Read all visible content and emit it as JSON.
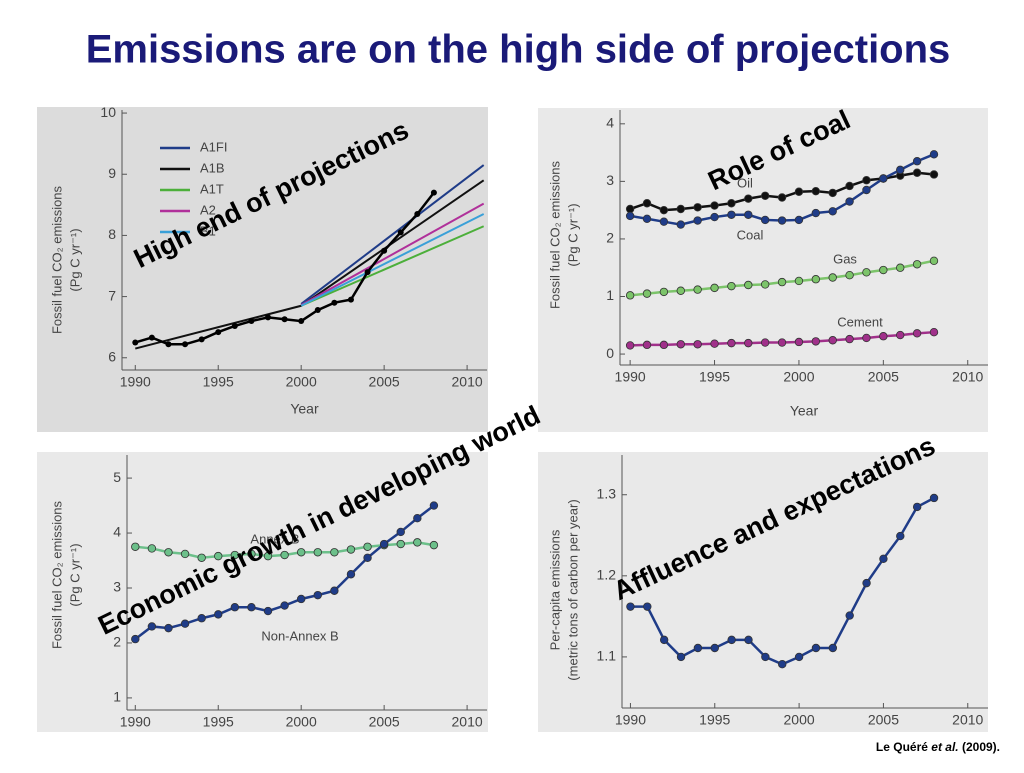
{
  "title": "Emissions are on the high side of projections",
  "annotations": [
    "High end of projections",
    "Role of coal",
    "Economic growth in developing world",
    "Affluence and expectations"
  ],
  "citation": {
    "author": "Le Quéré",
    "etal": "et al.",
    "year": "(2009)."
  },
  "chart_data": [
    {
      "type": "line",
      "xlabel": "Year",
      "ylabel": [
        "Fossil fuel CO₂ emissions",
        "(Pg C yr⁻¹)"
      ],
      "xlim": [
        1989.2,
        2011.2
      ],
      "ylim": [
        5.8,
        10.05
      ],
      "xticks": [
        1990,
        1995,
        2000,
        2005,
        2010
      ],
      "yticks": [
        6,
        7,
        8,
        9,
        10
      ],
      "legend": "upper left",
      "series": [
        {
          "name": "A1FI",
          "color": "#1f3c88",
          "x": [
            2000,
            2011
          ],
          "values": [
            6.88,
            9.15
          ]
        },
        {
          "name": "A1B",
          "color": "#111111",
          "x": [
            1990,
            2000,
            2011
          ],
          "values": [
            6.15,
            6.85,
            8.9
          ]
        },
        {
          "name": "A1T",
          "color": "#4caf3a",
          "x": [
            2000,
            2011
          ],
          "values": [
            6.85,
            8.15
          ]
        },
        {
          "name": "A2",
          "color": "#b0309a",
          "x": [
            2000,
            2011
          ],
          "values": [
            6.86,
            8.52
          ]
        },
        {
          "name": "B1",
          "color": "#3aa0d8",
          "x": [
            2000,
            2011
          ],
          "values": [
            6.85,
            8.35
          ]
        },
        {
          "color": "#000000",
          "marker": true,
          "x": [
            1990,
            1991,
            1992,
            1993,
            1994,
            1995,
            1996,
            1997,
            1998,
            1999,
            2000,
            2001,
            2002,
            2003,
            2004,
            2005,
            2006,
            2007,
            2008
          ],
          "values": [
            6.25,
            6.33,
            6.22,
            6.22,
            6.3,
            6.42,
            6.52,
            6.6,
            6.66,
            6.63,
            6.6,
            6.78,
            6.9,
            6.95,
            7.4,
            7.75,
            8.05,
            8.35,
            8.7
          ]
        }
      ]
    },
    {
      "type": "line",
      "xlabel": "Year",
      "ylabel": [
        "Fossil fuel CO₂ emissions",
        "(Pg C yr⁻¹)"
      ],
      "xlim": [
        1989.4,
        2011.2
      ],
      "ylim": [
        -0.19,
        4.24
      ],
      "xticks": [
        1990,
        1995,
        2000,
        2005,
        2010
      ],
      "yticks": [
        0,
        1,
        2,
        3,
        4
      ],
      "legend": "inline",
      "x": [
        1990,
        1991,
        1992,
        1993,
        1994,
        1995,
        1996,
        1997,
        1998,
        1999,
        2000,
        2001,
        2002,
        2003,
        2004,
        2005,
        2006,
        2007,
        2008
      ],
      "series": [
        {
          "name": "Oil",
          "color": "#111111",
          "marker": true,
          "values": [
            2.52,
            2.62,
            2.5,
            2.52,
            2.55,
            2.58,
            2.62,
            2.7,
            2.75,
            2.72,
            2.82,
            2.83,
            2.8,
            2.92,
            3.02,
            3.05,
            3.1,
            3.15,
            3.12
          ]
        },
        {
          "name": "Coal",
          "color": "#1f3c88",
          "marker": true,
          "values": [
            2.4,
            2.35,
            2.3,
            2.25,
            2.32,
            2.38,
            2.42,
            2.42,
            2.33,
            2.32,
            2.33,
            2.45,
            2.48,
            2.65,
            2.85,
            3.05,
            3.2,
            3.35,
            3.47
          ]
        },
        {
          "name": "Gas",
          "color": "#7cc46a",
          "marker": true,
          "values": [
            1.02,
            1.05,
            1.08,
            1.1,
            1.12,
            1.15,
            1.18,
            1.2,
            1.21,
            1.25,
            1.27,
            1.3,
            1.33,
            1.37,
            1.42,
            1.46,
            1.5,
            1.56,
            1.62
          ]
        },
        {
          "name": "Cement",
          "color": "#a0308a",
          "marker": true,
          "values": [
            0.15,
            0.16,
            0.16,
            0.17,
            0.17,
            0.18,
            0.19,
            0.19,
            0.2,
            0.2,
            0.21,
            0.22,
            0.24,
            0.26,
            0.28,
            0.31,
            0.33,
            0.36,
            0.38
          ]
        }
      ]
    },
    {
      "type": "line",
      "ylabel": [
        "Fossil fuel CO₂ emissions",
        "(Pg C yr⁻¹)"
      ],
      "xlim": [
        1989.5,
        2011.2
      ],
      "ylim": [
        0.78,
        5.42
      ],
      "xticks": [
        1990,
        1995,
        2000,
        2005,
        2010
      ],
      "yticks": [
        1,
        2,
        3,
        4,
        5
      ],
      "legend": "inline",
      "x": [
        1990,
        1991,
        1992,
        1993,
        1994,
        1995,
        1996,
        1997,
        1998,
        1999,
        2000,
        2001,
        2002,
        2003,
        2004,
        2005,
        2006,
        2007,
        2008
      ],
      "series": [
        {
          "name": "Annex B",
          "color": "#6cc08a",
          "marker": true,
          "values": [
            3.75,
            3.72,
            3.65,
            3.62,
            3.55,
            3.58,
            3.6,
            3.62,
            3.58,
            3.6,
            3.65,
            3.65,
            3.65,
            3.7,
            3.75,
            3.78,
            3.8,
            3.83,
            3.78
          ]
        },
        {
          "name": "Non-Annex B",
          "color": "#1f3c88",
          "marker": true,
          "values": [
            2.07,
            2.3,
            2.27,
            2.35,
            2.45,
            2.52,
            2.65,
            2.65,
            2.58,
            2.68,
            2.8,
            2.87,
            2.95,
            3.25,
            3.55,
            3.8,
            4.02,
            4.27,
            4.5
          ]
        }
      ]
    },
    {
      "type": "line",
      "ylabel": [
        "Per-capita emissions",
        "(metric tons of carbon per year)"
      ],
      "xlim": [
        1989.5,
        2011.2
      ],
      "ylim": [
        1.037,
        1.349
      ],
      "xticks": [
        1990,
        1995,
        2000,
        2005,
        2010
      ],
      "yticks": [
        1.1,
        1.2,
        1.3
      ],
      "x": [
        1990,
        1991,
        1992,
        1993,
        1994,
        1995,
        1996,
        1997,
        1998,
        1999,
        2000,
        2001,
        2002,
        2003,
        2004,
        2005,
        2006,
        2007,
        2008
      ],
      "series": [
        {
          "color": "#1f3c88",
          "marker": true,
          "values": [
            1.162,
            1.162,
            1.121,
            1.1,
            1.111,
            1.111,
            1.121,
            1.121,
            1.1,
            1.091,
            1.1,
            1.111,
            1.111,
            1.151,
            1.191,
            1.221,
            1.249,
            1.285,
            1.296
          ]
        }
      ]
    }
  ]
}
